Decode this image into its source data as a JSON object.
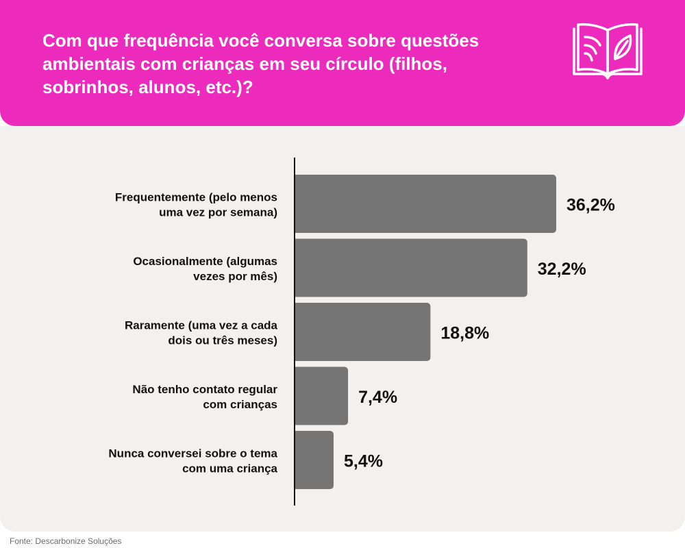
{
  "header": {
    "title": "Com que frequência você conversa sobre questões ambientais com crianças em seu círculo (filhos, sobrinhos, alunos, etc.)?",
    "icon": "open-book-leaf-icon"
  },
  "footer": {
    "source": "Fonte: Descarbonize Soluções"
  },
  "colors": {
    "header_bg": "#ec2bbd",
    "panel_bg": "#f2f1f0",
    "bar": "#757575",
    "text": "#111111"
  },
  "chart_data": {
    "type": "bar",
    "orientation": "horizontal",
    "categories": [
      [
        "Frequentemente (pelo menos",
        "uma vez por semana)"
      ],
      [
        "Ocasionalmente (algumas",
        "vezes por mês)"
      ],
      [
        "Raramente (uma vez a cada",
        "dois ou três meses)"
      ],
      [
        "Não tenho contato regular",
        "com crianças"
      ],
      [
        "Nunca conversei sobre o tema",
        "com uma criança"
      ]
    ],
    "values": [
      36.2,
      32.2,
      18.8,
      7.4,
      5.4
    ],
    "value_labels": [
      "36,2%",
      "32,2%",
      "18,8%",
      "7,4%",
      "5,4%"
    ],
    "unit": "%",
    "grid": false,
    "legend": "none"
  }
}
